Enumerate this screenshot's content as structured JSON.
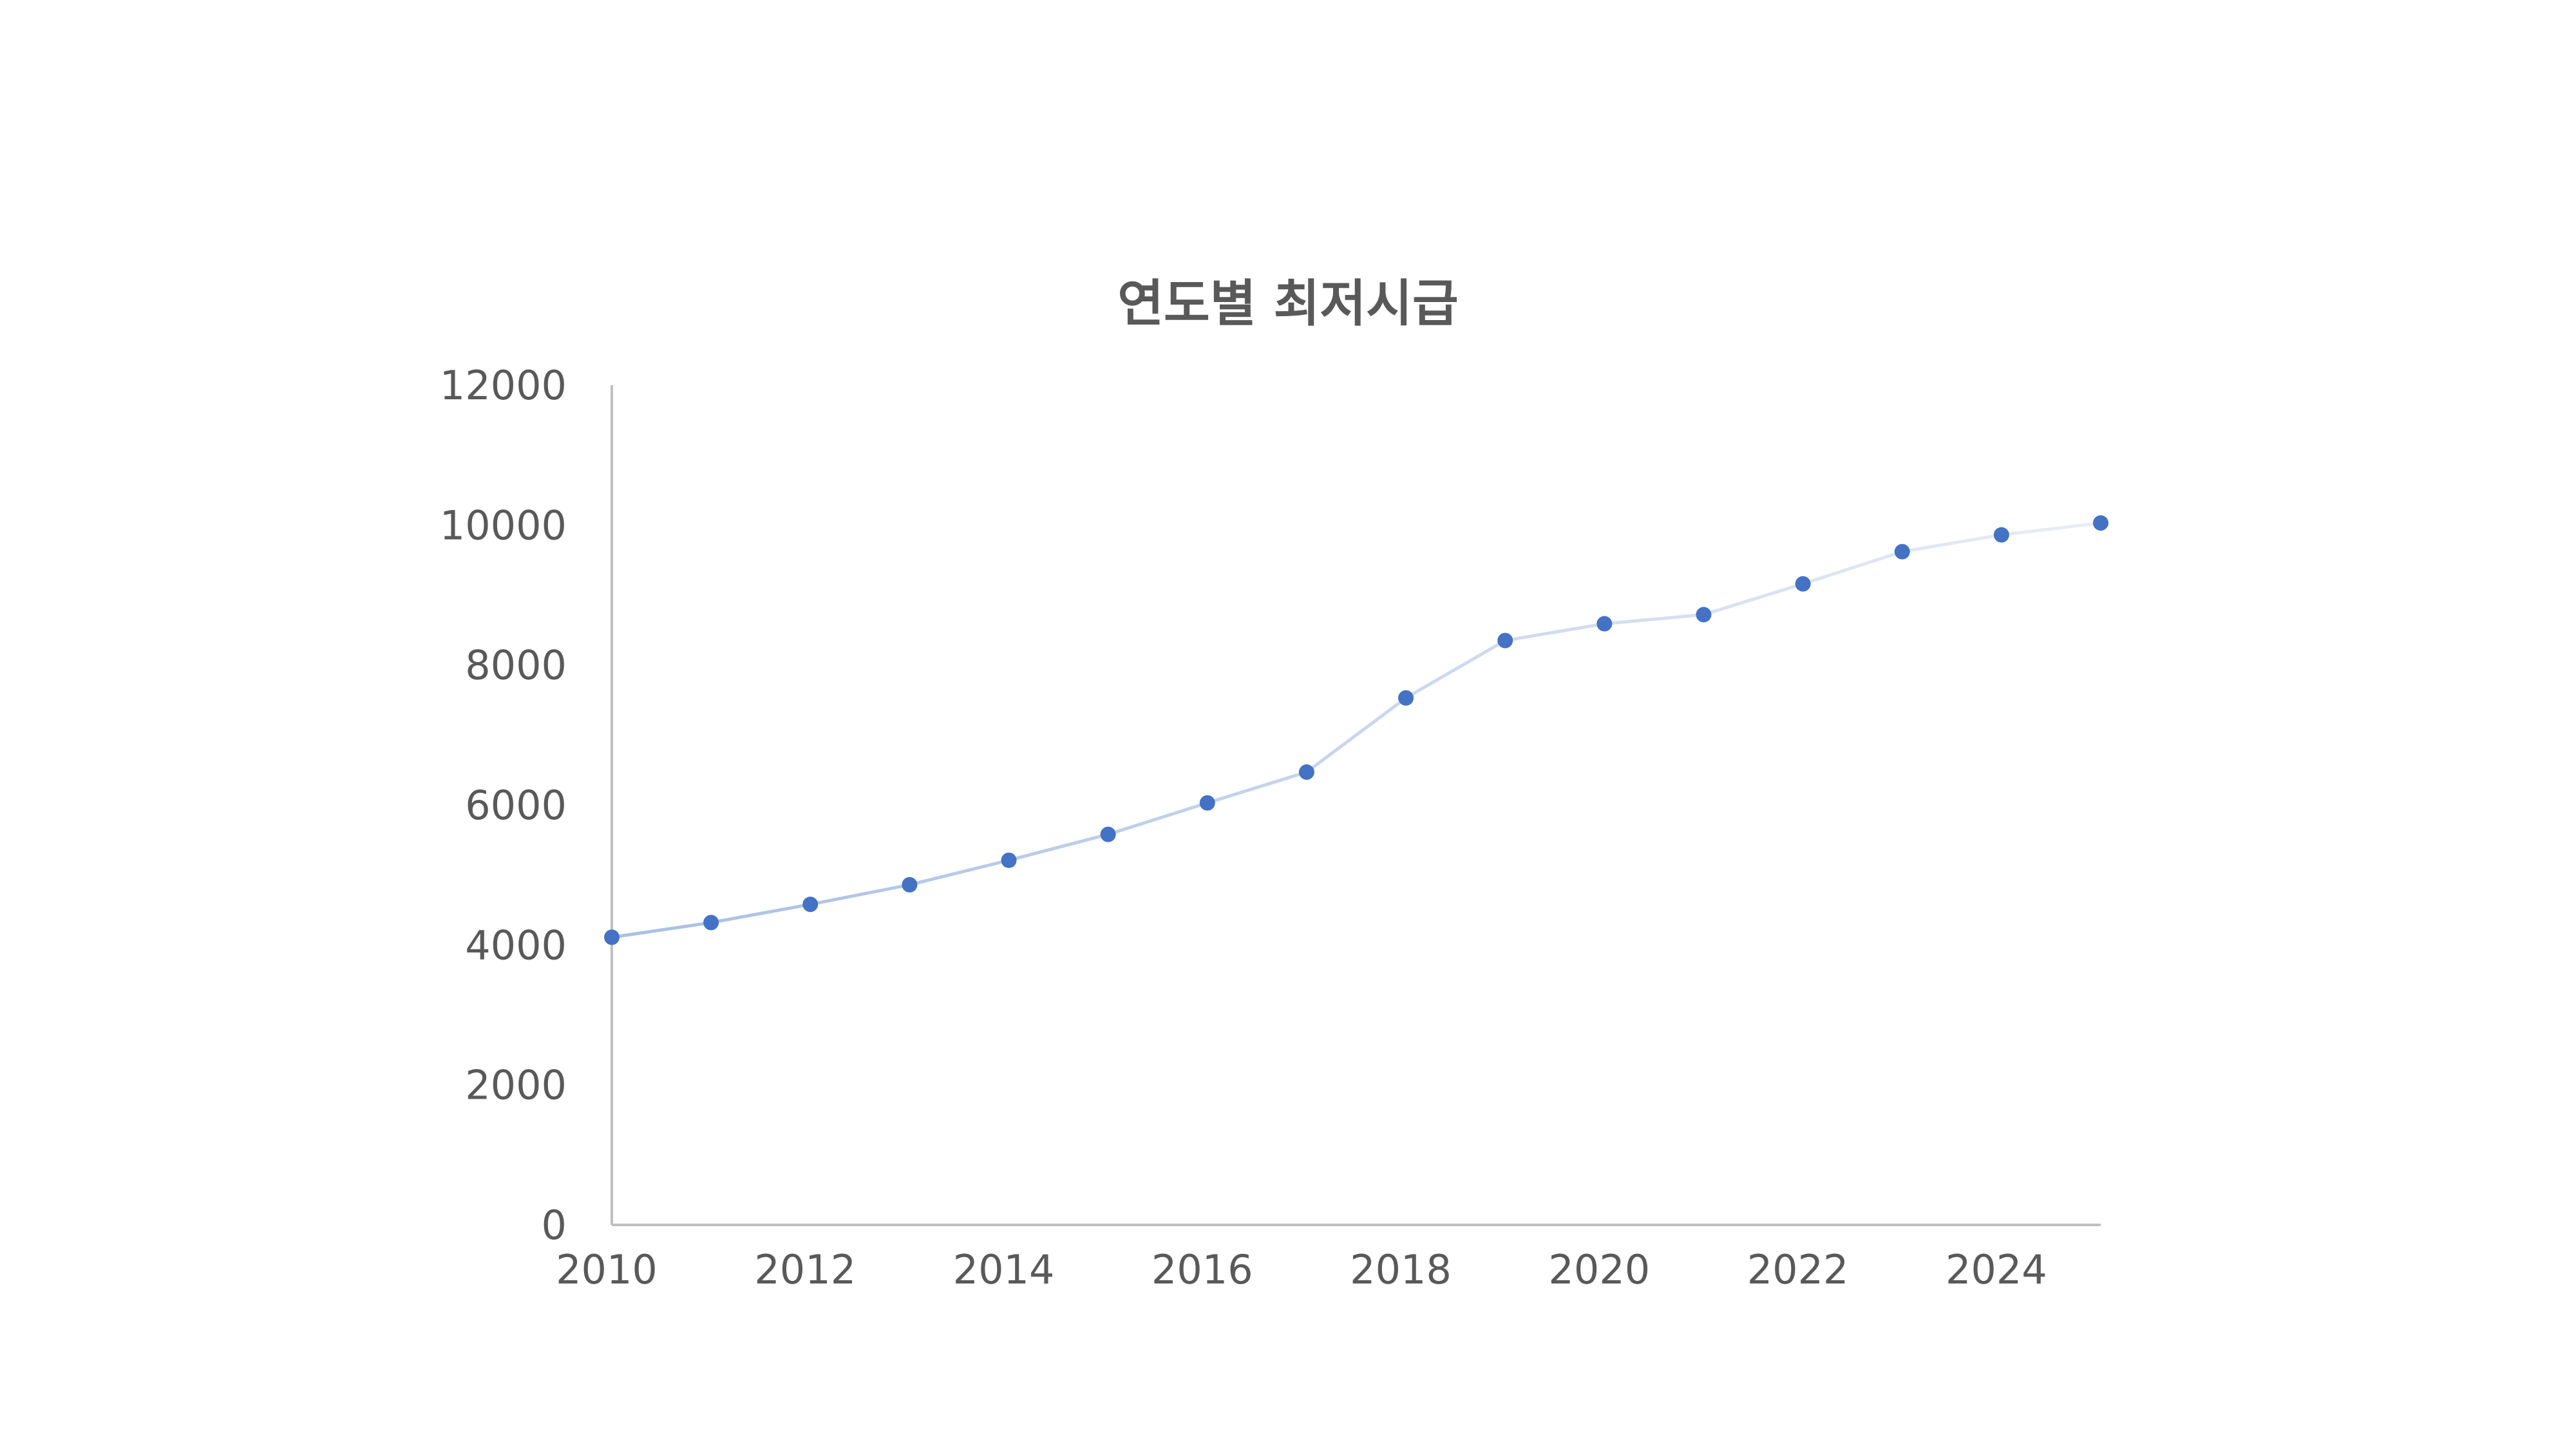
{
  "chart_data": {
    "type": "line",
    "title": "연도별 최저시급",
    "xlabel": "",
    "ylabel": "",
    "x": [
      2010,
      2011,
      2012,
      2013,
      2014,
      2015,
      2016,
      2017,
      2018,
      2019,
      2020,
      2021,
      2022,
      2023,
      2024,
      2025
    ],
    "series": [
      {
        "values": [
          4110,
          4320,
          4580,
          4860,
          5210,
          5580,
          6030,
          6470,
          7530,
          8350,
          8590,
          8720,
          9160,
          9620,
          9860,
          10030
        ]
      }
    ],
    "xlim": [
      2010,
      2025
    ],
    "ylim": [
      0,
      12000
    ],
    "x_ticks": [
      "2010",
      "2012",
      "2014",
      "2016",
      "2018",
      "2020",
      "2022",
      "2024"
    ],
    "y_ticks": [
      "0",
      "2000",
      "4000",
      "6000",
      "8000",
      "10000",
      "12000"
    ],
    "grid": false,
    "legend": "none",
    "colors": {
      "marker": "#4472c4",
      "line_start": "#a9bfe4",
      "line_end": "#e8edf6",
      "axis": "#bfbfbf",
      "text": "#595959"
    }
  }
}
